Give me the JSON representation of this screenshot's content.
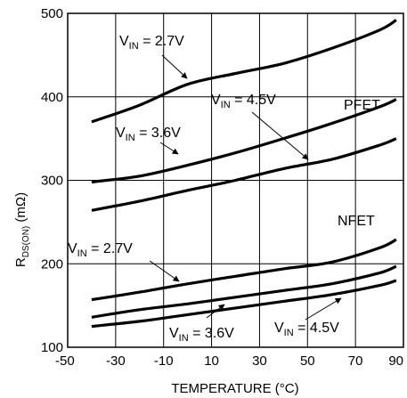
{
  "chart_data": {
    "type": "line",
    "title": "",
    "xlabel": "TEMPERATURE (°C)",
    "ylabel": {
      "main": "R",
      "sub": "DS(ON)",
      "unit": " (mΩ)"
    },
    "xlim": [
      -50,
      90
    ],
    "ylim": [
      100,
      500
    ],
    "xticks": [
      -50,
      -30,
      -10,
      10,
      30,
      50,
      70,
      90
    ],
    "yticks": [
      100,
      200,
      300,
      400,
      500
    ],
    "grid": true,
    "series": [
      {
        "x": [
          -40,
          -20,
          0,
          20,
          40,
          60,
          80,
          87
        ],
        "y": [
          370,
          390,
          415,
          428,
          440,
          458,
          480,
          492
        ]
      },
      {
        "x": [
          -40,
          -20,
          0,
          20,
          40,
          60,
          80,
          87
        ],
        "y": [
          298,
          305,
          318,
          333,
          350,
          368,
          388,
          397
        ]
      },
      {
        "x": [
          -40,
          -20,
          0,
          20,
          40,
          60,
          80,
          87
        ],
        "y": [
          264,
          275,
          288,
          300,
          314,
          325,
          342,
          350
        ]
      },
      {
        "x": [
          -40,
          -20,
          0,
          20,
          40,
          60,
          80,
          87
        ],
        "y": [
          157,
          166,
          176,
          185,
          194,
          202,
          219,
          229
        ]
      },
      {
        "x": [
          -40,
          -20,
          0,
          20,
          40,
          60,
          80,
          87
        ],
        "y": [
          136,
          145,
          152,
          160,
          168,
          176,
          189,
          197
        ]
      },
      {
        "x": [
          -40,
          -20,
          0,
          20,
          40,
          60,
          80,
          87
        ],
        "y": [
          125,
          131,
          139,
          147,
          155,
          163,
          174,
          180
        ]
      }
    ],
    "annotations": [
      {
        "main": "V",
        "sub": "IN",
        "rest": " = 2.7V"
      },
      {
        "main": "V",
        "sub": "IN",
        "rest": " = 4.5V"
      },
      {
        "main": "V",
        "sub": "IN",
        "rest": " = 3.6V"
      },
      {
        "main": "",
        "sub": "",
        "rest": "PFET"
      },
      {
        "main": "",
        "sub": "",
        "rest": "NFET"
      },
      {
        "main": "V",
        "sub": "IN",
        "rest": " = 2.7V"
      },
      {
        "main": "V",
        "sub": "IN",
        "rest": " = 3.6V"
      },
      {
        "main": "V",
        "sub": "IN",
        "rest": " = 4.5V"
      }
    ]
  }
}
